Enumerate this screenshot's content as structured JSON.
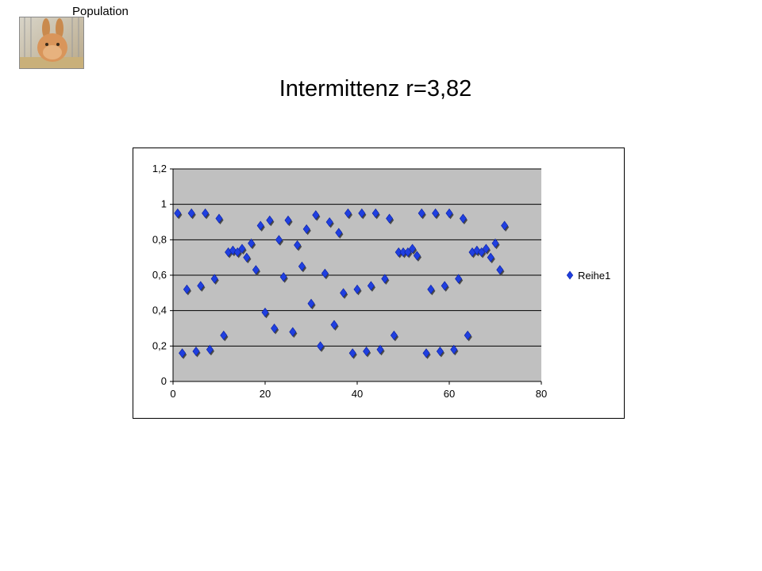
{
  "header": {
    "label": "Population",
    "thumbnail_icon": "rabbit-photo-icon"
  },
  "slide": {
    "title": "Intermittenz r=3,82"
  },
  "colors": {
    "marker": "#1f3fe0",
    "marker_shadow": "#4a4a4a",
    "plot_bg": "#c0c0c0",
    "grid": "#000000"
  },
  "chart_data": {
    "type": "scatter",
    "title": "",
    "xlabel": "",
    "ylabel": "",
    "xlim": [
      0,
      80
    ],
    "ylim": [
      0,
      1.2
    ],
    "x_ticks": [
      "0",
      "20",
      "40",
      "60",
      "80"
    ],
    "y_ticks": [
      "0",
      "0,2",
      "0,4",
      "0,6",
      "0,8",
      "1",
      "1,2"
    ],
    "grid": "horizontal",
    "legend_position": "right",
    "series": [
      {
        "name": "Reihe1",
        "x": [
          1,
          2,
          3,
          4,
          5,
          6,
          7,
          8,
          9,
          10,
          11,
          12,
          13,
          14,
          15,
          16,
          17,
          18,
          19,
          20,
          21,
          22,
          23,
          24,
          25,
          26,
          27,
          28,
          29,
          30,
          31,
          32,
          33,
          34,
          35,
          36,
          37,
          38,
          39,
          40,
          41,
          42,
          43,
          44,
          45,
          46,
          47,
          48,
          49,
          50,
          51,
          52,
          53,
          54,
          55,
          56,
          57,
          58,
          59,
          60,
          61,
          62,
          63,
          64,
          65,
          66,
          67,
          68,
          69,
          70,
          71,
          72
        ],
        "y": [
          0.95,
          0.16,
          0.52,
          0.95,
          0.17,
          0.54,
          0.95,
          0.18,
          0.58,
          0.92,
          0.26,
          0.73,
          0.74,
          0.73,
          0.75,
          0.7,
          0.78,
          0.63,
          0.88,
          0.39,
          0.91,
          0.3,
          0.8,
          0.59,
          0.91,
          0.28,
          0.77,
          0.65,
          0.86,
          0.44,
          0.94,
          0.2,
          0.61,
          0.9,
          0.32,
          0.84,
          0.5,
          0.95,
          0.16,
          0.52,
          0.95,
          0.17,
          0.54,
          0.95,
          0.18,
          0.58,
          0.92,
          0.26,
          0.73,
          0.73,
          0.73,
          0.75,
          0.71,
          0.95,
          0.16,
          0.52,
          0.95,
          0.17,
          0.54,
          0.95,
          0.18,
          0.58,
          0.92,
          0.26,
          0.73,
          0.74,
          0.73,
          0.75,
          0.7,
          0.78,
          0.63,
          0.88
        ]
      }
    ]
  }
}
